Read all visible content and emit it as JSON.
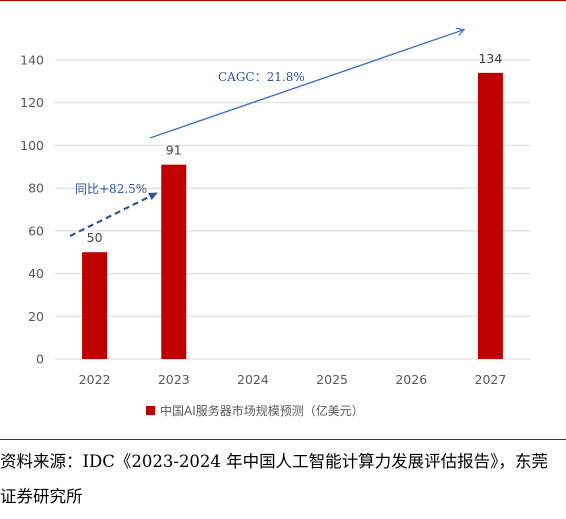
{
  "colors": {
    "bar": "#c00000",
    "axis_text": "#595959",
    "arrow": "#4472c4",
    "grid": "#d9d9d9",
    "rule": "#c00000"
  },
  "chart_data": {
    "type": "bar",
    "categories": [
      "2022",
      "2023",
      "2024",
      "2025",
      "2026",
      "2027"
    ],
    "series": [
      {
        "name": "中国AI服务器市场规模预测（亿美元）",
        "values": [
          50,
          91,
          null,
          null,
          null,
          134
        ]
      }
    ],
    "ylim": [
      0,
      140
    ],
    "yticks": [
      0,
      20,
      40,
      60,
      80,
      100,
      120,
      140
    ],
    "grid": "horizontal",
    "legend": "bottom",
    "annotations": [
      {
        "text": "同比+82.5%",
        "from": "2022",
        "to": "2023",
        "style": "dashed-arrow"
      },
      {
        "text": "CAGC：21.8%",
        "from": "2023",
        "to": "2027",
        "style": "solid-arrow"
      }
    ]
  },
  "source_note": "资料来源：IDC《2023-2024 年中国人工智能计算力发展评估报告》，东莞证券研究所"
}
